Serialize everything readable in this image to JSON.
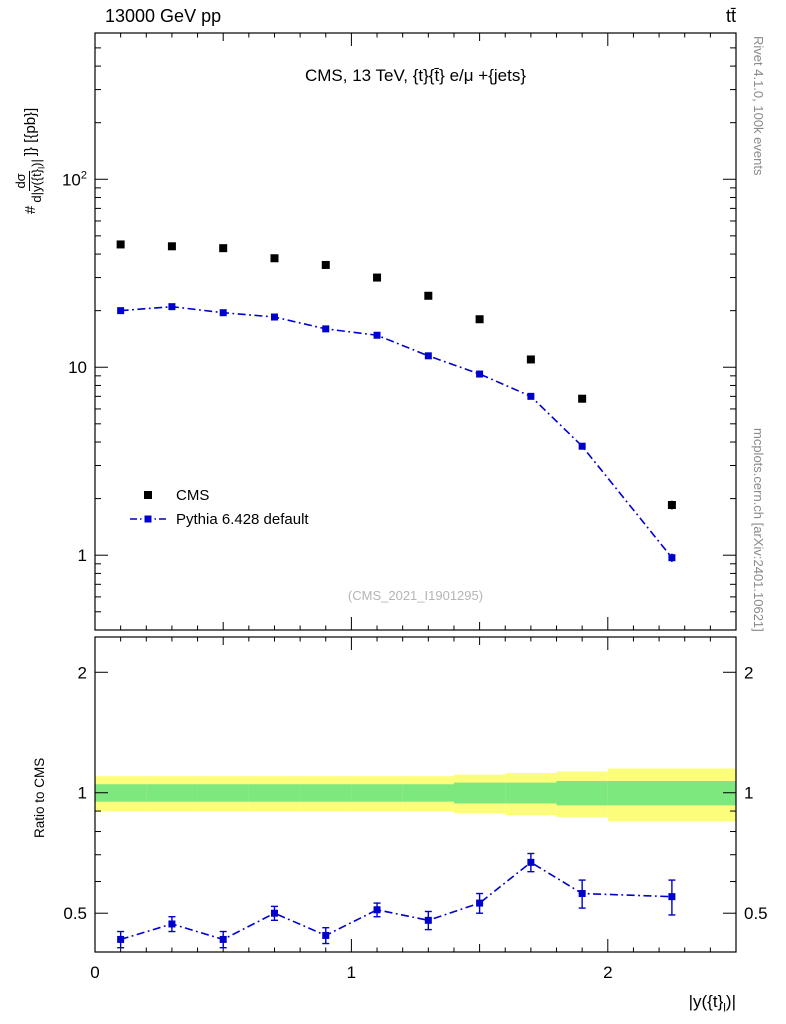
{
  "header": {
    "left": "13000 GeV pp",
    "right": "tt̄"
  },
  "panel_title": "CMS, 13 TeV, {t}{t̄} e/μ +{jets}",
  "watermark": "(CMS_2021_I1901295)",
  "side_labels": {
    "top_right": "Rivet 4.1.0, 100k events",
    "bottom_right": "mcplots.cern.ch [arXiv:2401.10621]"
  },
  "axes": {
    "y_label": {
      "prefix": "#",
      "frac_num": "dσ",
      "frac_den_main": "d|y({t}",
      "frac_den_sub": "l",
      "frac_den_end": ")|",
      "suffix": "]} [{pb}]"
    },
    "ratio_y_label": "Ratio to CMS",
    "x_label": {
      "main": "|y({t}",
      "sub": "l",
      "end": ")|"
    }
  },
  "legend": {
    "items": [
      {
        "label": "CMS"
      },
      {
        "label": "Pythia 6.428 default"
      }
    ]
  },
  "colors": {
    "data": "#000000",
    "mc": "#0000cc",
    "band_outer": "#fdfd7c",
    "band_inner": "#7de87d",
    "frame": "#000000",
    "side_text": "#8a8a8a",
    "watermark": "#b5b5b5"
  },
  "chart_data": {
    "type": "line",
    "title": "CMS, 13 TeV, {t}{t̄} e/μ +{jets}",
    "xlabel": "|y({t}_l)|",
    "ylabel": "# dσ/d|y({t}_l)|]} [{pb}]",
    "legend_position": "left-middle",
    "grid": false,
    "xlim": [
      0,
      2.5
    ],
    "xticks_labeled": [
      0,
      1,
      2
    ],
    "x": [
      0.1,
      0.3,
      0.5,
      0.7,
      0.9,
      1.1,
      1.3,
      1.5,
      1.7,
      1.9,
      2.25
    ],
    "top_panel": {
      "yscale": "log",
      "ylim": [
        0.4,
        600
      ],
      "yticks_labeled": [
        1,
        10,
        100
      ],
      "series": [
        {
          "name": "CMS",
          "marker": "filled-square",
          "color_key": "data",
          "values": [
            45,
            44,
            43,
            38,
            35,
            30,
            24,
            18,
            11,
            6.8,
            1.85
          ],
          "yerr": [
            1.5,
            1.5,
            1.4,
            1.3,
            1.2,
            1.0,
            0.8,
            0.6,
            0.45,
            0.3,
            0.1
          ]
        },
        {
          "name": "Pythia 6.428 default",
          "marker": "filled-square",
          "line": "dashdot",
          "color_key": "mc",
          "values": [
            20,
            21,
            19.5,
            18.5,
            16,
            14.8,
            11.5,
            9.2,
            7.0,
            3.8,
            0.97
          ],
          "yerr": [
            0.5,
            0.5,
            0.45,
            0.45,
            0.4,
            0.35,
            0.3,
            0.25,
            0.2,
            0.12,
            0.05
          ]
        }
      ]
    },
    "ratio_panel": {
      "yscale": "log",
      "ylim": [
        0.4,
        2.45
      ],
      "yticks_labeled": [
        0.5,
        1,
        2
      ],
      "bands": {
        "edges": [
          0,
          0.2,
          0.4,
          0.6,
          0.8,
          1.0,
          1.2,
          1.4,
          1.6,
          1.8,
          2.0,
          2.5
        ],
        "outer_lo": [
          0.9,
          0.9,
          0.9,
          0.9,
          0.9,
          0.9,
          0.9,
          0.89,
          0.88,
          0.87,
          0.85
        ],
        "outer_hi": [
          1.1,
          1.1,
          1.1,
          1.1,
          1.1,
          1.1,
          1.1,
          1.11,
          1.12,
          1.13,
          1.15
        ],
        "inner_lo": [
          0.95,
          0.95,
          0.95,
          0.95,
          0.95,
          0.95,
          0.95,
          0.94,
          0.94,
          0.93,
          0.93
        ],
        "inner_hi": [
          1.05,
          1.05,
          1.05,
          1.05,
          1.05,
          1.05,
          1.05,
          1.06,
          1.06,
          1.07,
          1.07
        ]
      },
      "series": [
        {
          "name": "Pythia 6.428 default / CMS",
          "marker": "filled-square",
          "line": "dashdot",
          "color_key": "mc",
          "values": [
            0.43,
            0.47,
            0.43,
            0.5,
            0.44,
            0.51,
            0.48,
            0.53,
            0.67,
            0.56,
            0.55
          ],
          "yerr": [
            0.02,
            0.02,
            0.02,
            0.02,
            0.02,
            0.02,
            0.025,
            0.03,
            0.035,
            0.045,
            0.055
          ]
        }
      ]
    }
  }
}
